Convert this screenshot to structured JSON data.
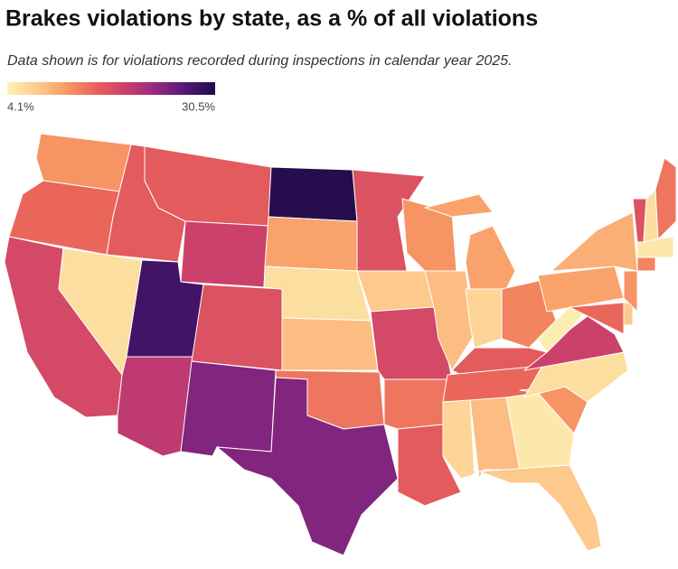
{
  "chart_data": {
    "type": "choropleth",
    "title": "Brakes violations by state, as a % of all violations",
    "subtitle": "Data shown is for violations recorded during inspections in calendar year 2025.",
    "legend": {
      "min": {
        "value": 4.1,
        "label": "4.1%"
      },
      "max": {
        "value": 30.5,
        "label": "30.5%"
      }
    },
    "colors": [
      "#fcf1b4",
      "#fecb8e",
      "#f99964",
      "#e8605a",
      "#c93f6c",
      "#942a80",
      "#541777",
      "#1f0c48"
    ],
    "values": [
      12,
      15,
      18,
      16,
      16,
      19,
      6,
      28,
      20,
      17,
      24,
      30,
      11,
      6,
      9,
      14,
      24,
      17,
      8,
      18,
      14,
      16,
      12,
      9,
      11,
      7,
      13,
      16,
      15,
      7,
      9,
      5,
      8,
      12,
      6,
      19,
      4.5,
      11,
      10,
      15,
      8,
      12,
      13,
      5,
      17,
      6,
      14
    ]
  }
}
